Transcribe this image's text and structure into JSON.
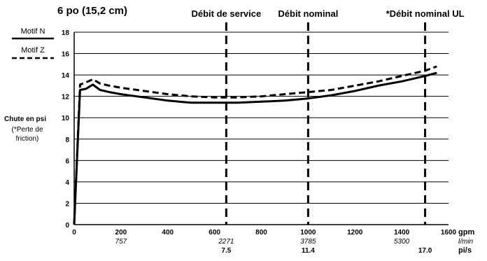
{
  "chart_data": {
    "type": "line",
    "title": "6 po (15,2 cm)",
    "ylabel": "Chute en psi",
    "ylabel_note": [
      "(*Perte de",
      "friction)"
    ],
    "xlim": [
      0,
      1600
    ],
    "ylim": [
      0,
      18
    ],
    "grid": true,
    "x_ticks": [
      0,
      200,
      400,
      600,
      800,
      1000,
      1200,
      1400,
      1600
    ],
    "x_tick_labels": [
      "0",
      "200",
      "400",
      "600",
      "800",
      "1000",
      "1200",
      "1400",
      "1600"
    ],
    "y_ticks": [
      0,
      2,
      4,
      6,
      8,
      10,
      12,
      14,
      16,
      18
    ],
    "y_tick_labels": [
      "0",
      "2",
      "4",
      "6",
      "8",
      "10",
      "12",
      "14",
      "16",
      "18"
    ],
    "x_unit_labels": [
      "gpm",
      "l/min",
      "pi/s"
    ],
    "secondary_x_labels": [
      {
        "x": 200,
        "text": "757"
      },
      {
        "x": 650,
        "text": "2271"
      },
      {
        "x": 1000,
        "text": "3785"
      },
      {
        "x": 1400,
        "text": "5300"
      }
    ],
    "velocity_labels": [
      {
        "x": 650,
        "text": "7.5"
      },
      {
        "x": 1000,
        "text": "11.4"
      },
      {
        "x": 1500,
        "text": "17.0"
      }
    ],
    "reference_lines": [
      {
        "x": 650,
        "label": "Débit de service"
      },
      {
        "x": 1000,
        "label": "Débit nominal"
      },
      {
        "x": 1500,
        "label": "*Débit nominal UL"
      }
    ],
    "series": [
      {
        "name": "Motif N",
        "style": "solid",
        "x": [
          0,
          25,
          50,
          80,
          110,
          150,
          200,
          300,
          400,
          500,
          600,
          700,
          800,
          900,
          1000,
          1100,
          1200,
          1300,
          1400,
          1500,
          1550
        ],
        "y": [
          0,
          12.6,
          12.7,
          13.1,
          12.6,
          12.4,
          12.2,
          11.9,
          11.6,
          11.4,
          11.4,
          11.4,
          11.5,
          11.6,
          11.8,
          12.1,
          12.5,
          13.0,
          13.4,
          13.9,
          14.2
        ]
      },
      {
        "name": "Motif Z",
        "style": "dashed",
        "x": [
          0,
          25,
          50,
          80,
          110,
          150,
          200,
          300,
          400,
          500,
          600,
          700,
          800,
          900,
          1000,
          1100,
          1200,
          1300,
          1400,
          1500,
          1550
        ],
        "y": [
          0,
          13.1,
          13.3,
          13.6,
          13.2,
          13.0,
          12.8,
          12.5,
          12.2,
          12.0,
          11.9,
          11.9,
          12.0,
          12.2,
          12.4,
          12.6,
          13.0,
          13.4,
          13.9,
          14.4,
          14.8
        ]
      }
    ],
    "legend": {
      "placement": "top-left"
    }
  }
}
